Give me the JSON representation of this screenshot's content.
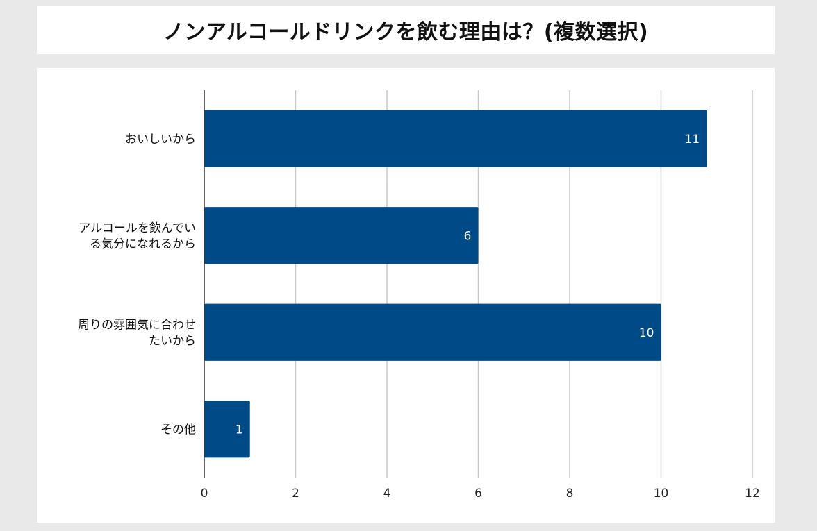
{
  "chart_data": {
    "type": "bar",
    "orientation": "horizontal",
    "title": "ノンアルコールドリンクを飲む理由は？(複数選択)",
    "categories": [
      [
        "おいしいから"
      ],
      [
        "アルコールを飲んでい",
        "る気分になれるから"
      ],
      [
        "周りの雰囲気に合わせ",
        "たいから"
      ],
      [
        "その他"
      ]
    ],
    "values": [
      11,
      6,
      10,
      1
    ],
    "xlim": [
      0,
      12
    ],
    "xticks": [
      0,
      2,
      4,
      6,
      8,
      10,
      12
    ],
    "grid": true,
    "bar_color": "#004a87",
    "data_label_color": "#ffffff"
  }
}
